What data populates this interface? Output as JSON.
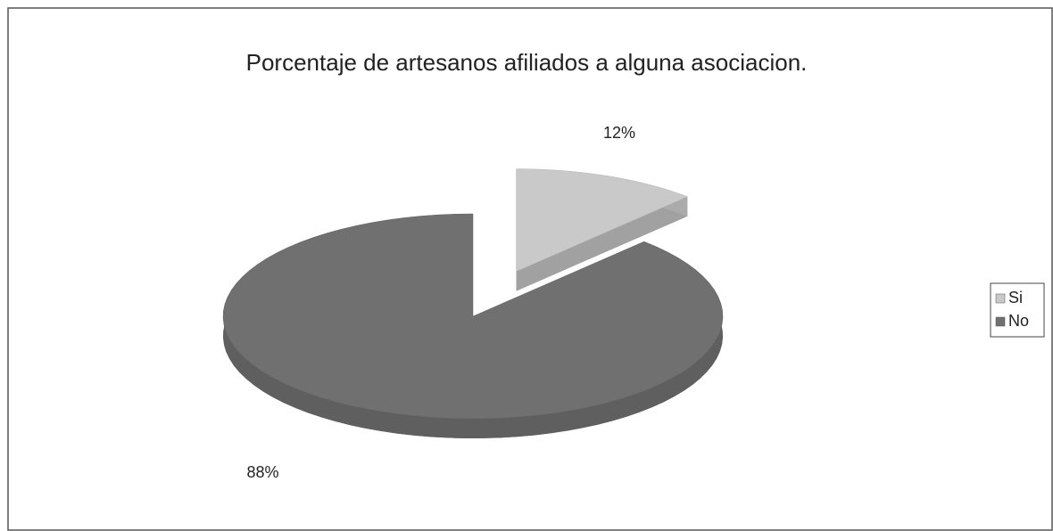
{
  "chart_data": {
    "type": "pie",
    "title": "Porcentaje de artesanos afiliados a alguna asociacion.",
    "categories": [
      "Si",
      "No"
    ],
    "values": [
      12,
      88
    ],
    "value_labels": [
      "12%",
      "88%"
    ],
    "colors": [
      "#c9c9c9",
      "#707070"
    ],
    "legend": "right"
  }
}
